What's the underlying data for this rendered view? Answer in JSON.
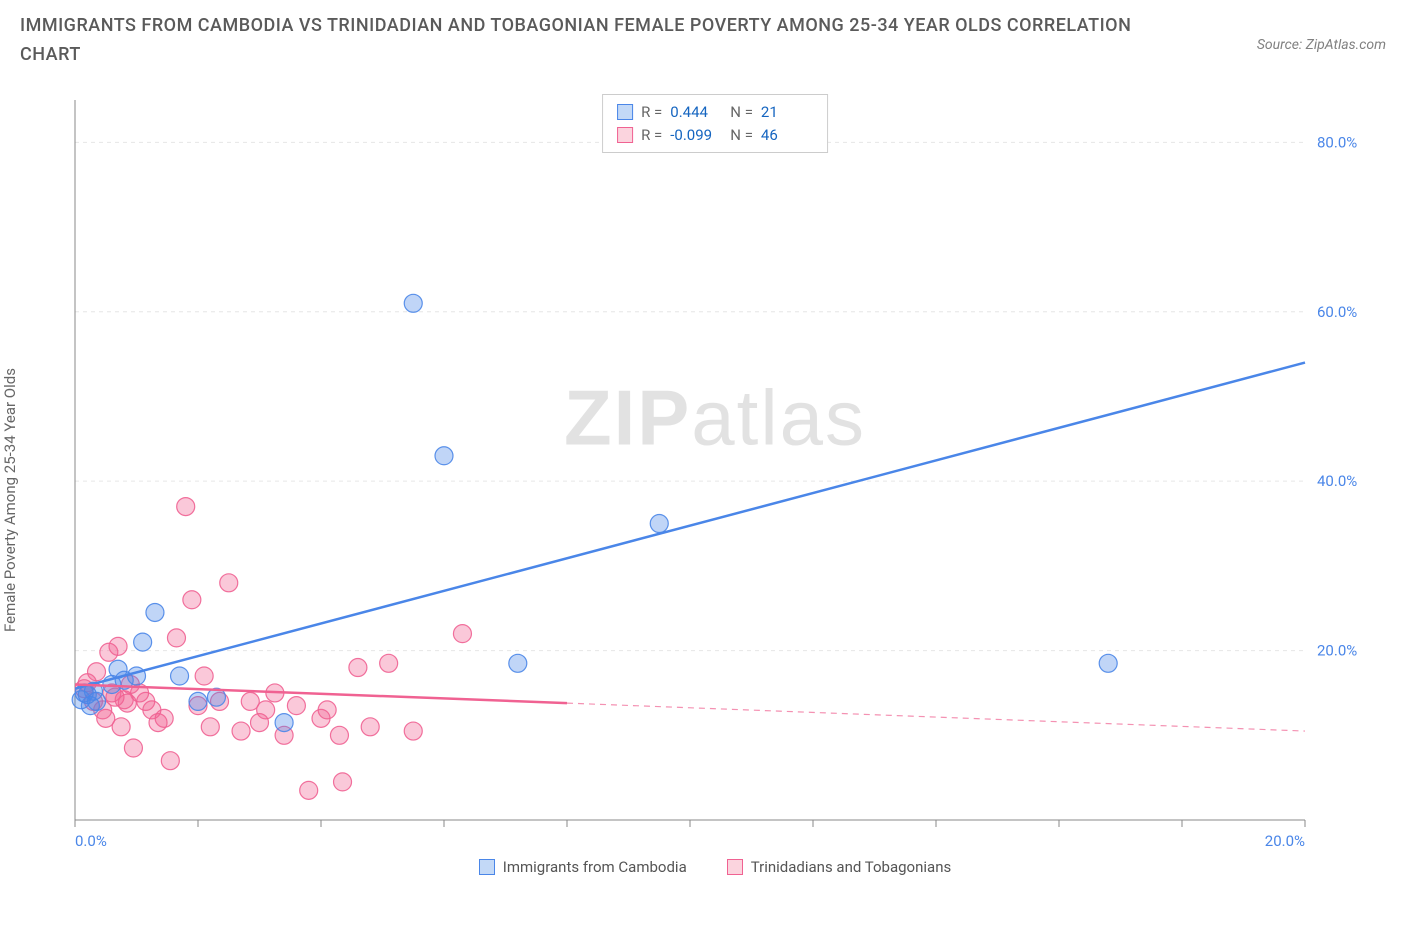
{
  "title": "IMMIGRANTS FROM CAMBODIA VS TRINIDADIAN AND TOBAGONIAN FEMALE POVERTY AMONG 25-34 YEAR OLDS CORRELATION CHART",
  "source": "Source: ZipAtlas.com",
  "ylabel": "Female Poverty Among 25-34 Year Olds",
  "watermark_bold": "ZIP",
  "watermark_light": "atlas",
  "chart": {
    "type": "scatter",
    "background_color": "#ffffff",
    "grid_color": "#e6e6e6",
    "axis_color": "#888888",
    "tick_color": "#888888",
    "xlim": [
      0,
      20
    ],
    "ylim": [
      0,
      85
    ],
    "x_ticks": [
      0,
      2,
      4,
      6,
      8,
      10,
      12,
      14,
      16,
      18,
      20
    ],
    "x_tick_labels": [
      "0.0%",
      "",
      "",
      "",
      "",
      "",
      "",
      "",
      "",
      "",
      "20.0%"
    ],
    "y_ticks": [
      20,
      40,
      60,
      80
    ],
    "y_tick_labels": [
      "20.0%",
      "40.0%",
      "60.0%",
      "80.0%"
    ],
    "y_tick_color": "#4a86e8",
    "x_tick_label_color": "#4a86e8",
    "marker_radius": 9,
    "marker_opacity": 0.35,
    "marker_stroke_opacity": 0.9,
    "line_width": 2.5,
    "dash_pattern": "6,5",
    "label_fontsize": 15
  },
  "series": [
    {
      "id": "cambodia",
      "label": "Immigrants from Cambodia",
      "color": "#4a86e8",
      "fill": "#c3d9f7",
      "R": "0.444",
      "N": "21",
      "trend": {
        "x1": 0,
        "y1": 15.5,
        "x2": 20,
        "y2": 54,
        "solid_until_x": 20
      },
      "points": [
        [
          0.1,
          14.2
        ],
        [
          0.15,
          15.0
        ],
        [
          0.2,
          14.8
        ],
        [
          0.25,
          13.5
        ],
        [
          0.3,
          15.2
        ],
        [
          0.35,
          14.0
        ],
        [
          0.6,
          16.0
        ],
        [
          0.7,
          17.8
        ],
        [
          0.8,
          16.5
        ],
        [
          1.0,
          17.0
        ],
        [
          1.1,
          21.0
        ],
        [
          1.3,
          24.5
        ],
        [
          1.7,
          17.0
        ],
        [
          2.0,
          14.0
        ],
        [
          2.3,
          14.5
        ],
        [
          3.4,
          11.5
        ],
        [
          5.5,
          61.0
        ],
        [
          6.0,
          43.0
        ],
        [
          7.2,
          18.5
        ],
        [
          9.5,
          35.0
        ],
        [
          16.8,
          18.5
        ]
      ]
    },
    {
      "id": "trinidad",
      "label": "Trinidadians and Tobagonians",
      "color": "#f06292",
      "fill": "#fbd4de",
      "R": "-0.099",
      "N": "46",
      "trend": {
        "x1": 0,
        "y1": 16.0,
        "x2": 20,
        "y2": 10.5,
        "solid_until_x": 8
      },
      "points": [
        [
          0.15,
          15.5
        ],
        [
          0.2,
          16.2
        ],
        [
          0.3,
          14.0
        ],
        [
          0.35,
          17.5
        ],
        [
          0.45,
          13.0
        ],
        [
          0.5,
          12.0
        ],
        [
          0.55,
          19.8
        ],
        [
          0.6,
          15.0
        ],
        [
          0.65,
          14.5
        ],
        [
          0.7,
          20.5
        ],
        [
          0.75,
          11.0
        ],
        [
          0.8,
          14.2
        ],
        [
          0.85,
          13.8
        ],
        [
          0.9,
          16.0
        ],
        [
          0.95,
          8.5
        ],
        [
          1.05,
          15.0
        ],
        [
          1.15,
          14.0
        ],
        [
          1.25,
          13.0
        ],
        [
          1.35,
          11.5
        ],
        [
          1.45,
          12.0
        ],
        [
          1.55,
          7.0
        ],
        [
          1.65,
          21.5
        ],
        [
          1.8,
          37.0
        ],
        [
          1.9,
          26.0
        ],
        [
          2.0,
          13.5
        ],
        [
          2.1,
          17.0
        ],
        [
          2.2,
          11.0
        ],
        [
          2.35,
          14.0
        ],
        [
          2.5,
          28.0
        ],
        [
          2.7,
          10.5
        ],
        [
          2.85,
          14.0
        ],
        [
          3.0,
          11.5
        ],
        [
          3.1,
          13.0
        ],
        [
          3.25,
          15.0
        ],
        [
          3.4,
          10.0
        ],
        [
          3.6,
          13.5
        ],
        [
          3.8,
          3.5
        ],
        [
          4.0,
          12.0
        ],
        [
          4.1,
          13.0
        ],
        [
          4.3,
          10.0
        ],
        [
          4.35,
          4.5
        ],
        [
          4.6,
          18.0
        ],
        [
          4.8,
          11.0
        ],
        [
          5.1,
          18.5
        ],
        [
          5.5,
          10.5
        ],
        [
          6.3,
          22.0
        ]
      ]
    }
  ],
  "stats_legend": {
    "rlabel": "R =",
    "nlabel": "N ="
  },
  "bottom_legend": {
    "items": [
      "Immigrants from Cambodia",
      "Trinidadians and Tobagonians"
    ]
  }
}
